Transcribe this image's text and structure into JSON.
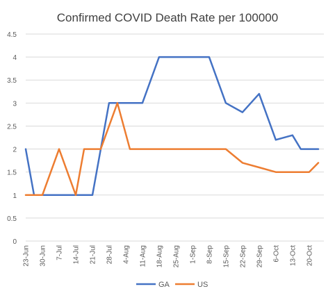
{
  "chart_data": {
    "type": "line",
    "title": "Confirmed COVID Death Rate per 100000",
    "xlabel": "",
    "ylabel": "",
    "categories": [
      "23-Jun",
      "30-Jun",
      "7-Jul",
      "14-Jul",
      "21-Jul",
      "28-Jul",
      "4-Aug",
      "11-Aug",
      "18-Aug",
      "25-Aug",
      "1-Sep",
      "8-Sep",
      "15-Sep",
      "22-Sep",
      "29-Sep",
      "6-Oct",
      "13-Oct",
      "20-Oct"
    ],
    "x": [
      "23-Jun",
      "26-Jun",
      "30-Jun",
      "3-Jul",
      "7-Jul",
      "10-Jul",
      "14-Jul",
      "17-Jul",
      "21-Jul",
      "24-Jul",
      "28-Jul",
      "31-Jul",
      "4-Aug",
      "7-Aug",
      "11-Aug",
      "14-Aug",
      "18-Aug",
      "21-Aug",
      "25-Aug",
      "28-Aug",
      "1-Sep",
      "4-Sep",
      "8-Sep",
      "11-Sep",
      "15-Sep",
      "18-Sep",
      "22-Sep",
      "25-Sep",
      "29-Sep",
      "2-Oct",
      "6-Oct",
      "9-Oct",
      "13-Oct",
      "16-Oct",
      "20-Oct",
      "23-Oct"
    ],
    "series": [
      {
        "name": "GA",
        "color": "#4472c4",
        "values": [
          2,
          1,
          1,
          1,
          1,
          1,
          1,
          1,
          2,
          3,
          3,
          3,
          3,
          3,
          3,
          4,
          4,
          4,
          4,
          4,
          4,
          4,
          4,
          3,
          3,
          2.8,
          3.2,
          2.2,
          2.3,
          2,
          2,
          2,
          2,
          2,
          2,
          2
        ]
      },
      {
        "name": "US",
        "color": "#ed7d31",
        "values": [
          1,
          1,
          1,
          2,
          1,
          1,
          2,
          2,
          2,
          3,
          2,
          2,
          2,
          2,
          2,
          2,
          2,
          2,
          2,
          1.7,
          1.6,
          1.5,
          1.5,
          1.5,
          1.7,
          1.7,
          1.7,
          1.7,
          1.7,
          1.7,
          1.7,
          1.7,
          1.7,
          1.7,
          1.7,
          1.7
        ]
      }
    ],
    "yticks": [
      "0",
      "0.5",
      "1",
      "1.5",
      "2",
      "2.5",
      "3",
      "3.5",
      "4",
      "4.5"
    ],
    "ylim": [
      0,
      4.5
    ],
    "grid": true,
    "legend": "bottom"
  }
}
